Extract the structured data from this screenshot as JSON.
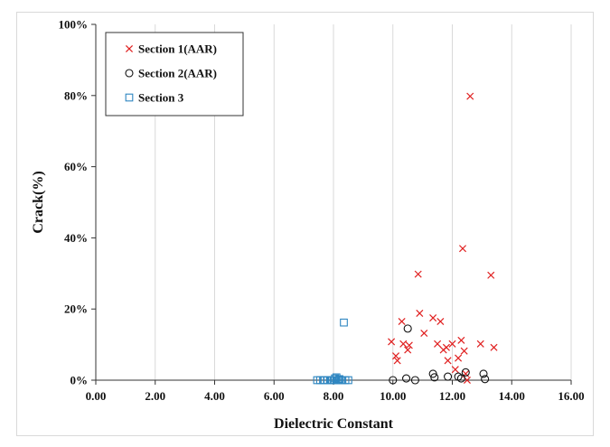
{
  "chart_data": {
    "type": "scatter",
    "title": "",
    "xlabel": "Dielectric Constant",
    "ylabel": "Crack(%)",
    "xlim": [
      0,
      16
    ],
    "ylim": [
      0,
      100
    ],
    "x_ticks": [
      0,
      2,
      4,
      6,
      8,
      10,
      12,
      14,
      16
    ],
    "x_tick_labels": [
      "0.00",
      "2.00",
      "4.00",
      "6.00",
      "8.00",
      "10.00",
      "12.00",
      "14.00",
      "16.00"
    ],
    "y_ticks": [
      0,
      20,
      40,
      60,
      80,
      100
    ],
    "y_tick_labels": [
      "0%",
      "20%",
      "40%",
      "60%",
      "80%",
      "100%"
    ],
    "grid": "vertical-major",
    "legend_position": "top-left",
    "series": [
      {
        "name": "Section 1(AAR)",
        "marker": "x",
        "color": "#e02020",
        "points": [
          [
            9.95,
            10.8
          ],
          [
            10.1,
            6.8
          ],
          [
            10.15,
            5.5
          ],
          [
            10.3,
            16.5
          ],
          [
            10.35,
            10.2
          ],
          [
            10.5,
            8.5
          ],
          [
            10.55,
            9.8
          ],
          [
            10.85,
            29.8
          ],
          [
            10.9,
            18.8
          ],
          [
            11.05,
            13.2
          ],
          [
            11.35,
            17.5
          ],
          [
            11.5,
            10.2
          ],
          [
            11.6,
            16.5
          ],
          [
            11.7,
            8.5
          ],
          [
            11.8,
            9.2
          ],
          [
            11.85,
            5.5
          ],
          [
            12.0,
            10.2
          ],
          [
            12.1,
            3.0
          ],
          [
            12.2,
            6.2
          ],
          [
            12.3,
            11.2
          ],
          [
            12.35,
            37.0
          ],
          [
            12.4,
            8.2
          ],
          [
            12.45,
            1.8
          ],
          [
            12.5,
            0.0
          ],
          [
            12.6,
            79.8
          ],
          [
            12.95,
            10.2
          ],
          [
            13.3,
            29.5
          ],
          [
            13.4,
            9.2
          ]
        ]
      },
      {
        "name": "Section 2(AAR)",
        "marker": "circle",
        "color": "#111111",
        "points": [
          [
            10.0,
            0.0
          ],
          [
            10.45,
            0.5
          ],
          [
            10.5,
            14.5
          ],
          [
            10.75,
            0.0
          ],
          [
            11.35,
            1.8
          ],
          [
            11.4,
            0.8
          ],
          [
            11.85,
            1.0
          ],
          [
            12.2,
            1.0
          ],
          [
            12.3,
            0.5
          ],
          [
            12.45,
            2.2
          ],
          [
            13.05,
            1.8
          ],
          [
            13.1,
            0.3
          ]
        ]
      },
      {
        "name": "Section 3",
        "marker": "square",
        "color": "#2e86c1",
        "points": [
          [
            7.45,
            0.0
          ],
          [
            7.55,
            0.0
          ],
          [
            7.65,
            0.0
          ],
          [
            7.7,
            0.0
          ],
          [
            7.8,
            0.0
          ],
          [
            7.9,
            0.0
          ],
          [
            7.95,
            0.0
          ],
          [
            8.0,
            0.0
          ],
          [
            8.05,
            0.5
          ],
          [
            8.1,
            0.0
          ],
          [
            8.1,
            0.8
          ],
          [
            8.15,
            0.0
          ],
          [
            8.2,
            0.3
          ],
          [
            8.25,
            0.0
          ],
          [
            8.3,
            0.0
          ],
          [
            8.35,
            16.2
          ],
          [
            8.4,
            0.0
          ],
          [
            8.5,
            0.0
          ]
        ]
      }
    ]
  }
}
